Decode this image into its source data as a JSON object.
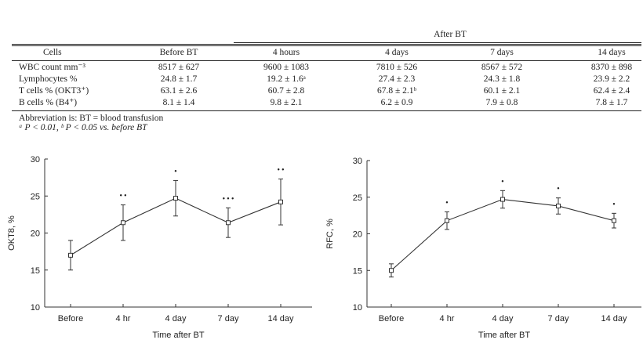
{
  "table": {
    "group_header": "After BT",
    "headers": [
      "Cells",
      "Before BT",
      "4 hours",
      "4 days",
      "7 days",
      "14 days"
    ],
    "rows": [
      {
        "label": "WBC count mm⁻³",
        "values": [
          "8517 ± 627",
          "9600 ± 1083",
          "7810 ± 526",
          "8567 ± 572",
          "8370 ± 898"
        ]
      },
      {
        "label": "Lymphocytes %",
        "values": [
          "24.8 ± 1.7",
          "19.2 ± 1.6ᵃ",
          "27.4 ± 2.3",
          "24.3 ± 1.8",
          "23.9 ± 2.2"
        ]
      },
      {
        "label": "T cells % (OKT3⁺)",
        "values": [
          "63.1 ± 2.6",
          "60.7 ± 2.8",
          "67.8 ± 2.1ᵇ",
          "60.1 ± 2.1",
          "62.4 ± 2.4"
        ]
      },
      {
        "label": "B cells % (B4⁺)",
        "values": [
          "8.1 ± 1.4",
          "9.8 ± 2.1",
          "6.2 ± 0.9",
          "7.9 ± 0.8",
          "7.8 ± 1.7"
        ]
      }
    ],
    "footnote_1": "Abbreviation is: BT = blood transfusion",
    "footnote_2": "ᵃ P < 0.01, ᵇ P < 0.05 vs. before BT"
  },
  "chart_data": [
    {
      "type": "line",
      "categories": [
        "Before",
        "4 hr",
        "4 day",
        "7 day",
        "14 day"
      ],
      "values": [
        17.0,
        21.4,
        24.7,
        21.4,
        24.2
      ],
      "error": [
        2.0,
        2.4,
        2.4,
        2.0,
        3.1
      ],
      "markers": [
        "",
        "• •",
        "•",
        "• • •",
        "• •"
      ],
      "xlabel": "Time after BT",
      "ylabel": "OKT8, %",
      "ylim": [
        10,
        30
      ],
      "yticks": [
        10,
        15,
        20,
        25,
        30
      ],
      "grid": false
    },
    {
      "type": "line",
      "categories": [
        "Before",
        "4 hr",
        "4 day",
        "7 day",
        "14 day"
      ],
      "values": [
        15.0,
        21.8,
        24.7,
        23.8,
        21.8
      ],
      "error": [
        0.9,
        1.2,
        1.2,
        1.1,
        1.0
      ],
      "markers": [
        "",
        "•",
        "•",
        "•",
        "•"
      ],
      "xlabel": "Time after BT",
      "ylabel": "RFC, %",
      "ylim": [
        10,
        30
      ],
      "yticks": [
        10,
        15,
        20,
        25,
        30
      ],
      "grid": false
    }
  ]
}
